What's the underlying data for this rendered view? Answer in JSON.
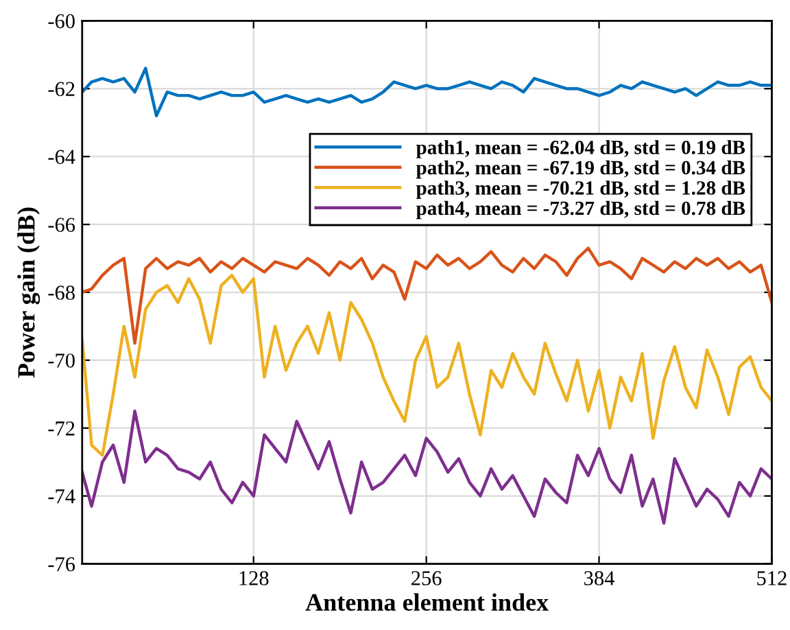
{
  "chart_data": {
    "type": "line",
    "xlabel": "Antenna element index",
    "ylabel": "Power gain (dB)",
    "x": [
      1,
      8,
      16,
      24,
      32,
      40,
      48,
      56,
      64,
      72,
      80,
      88,
      96,
      104,
      112,
      120,
      128,
      136,
      144,
      152,
      160,
      168,
      176,
      184,
      192,
      200,
      208,
      216,
      224,
      232,
      240,
      248,
      256,
      264,
      272,
      280,
      288,
      296,
      304,
      312,
      320,
      328,
      336,
      344,
      352,
      360,
      368,
      376,
      384,
      392,
      400,
      408,
      416,
      424,
      432,
      440,
      448,
      456,
      464,
      472,
      480,
      488,
      496,
      504,
      512
    ],
    "series": [
      {
        "name": "path1, mean = -62.04 dB, std = 0.19 dB",
        "color": "#0072bd",
        "values": [
          -62.1,
          -61.8,
          -61.7,
          -61.8,
          -61.7,
          -62.1,
          -61.4,
          -62.8,
          -62.1,
          -62.2,
          -62.2,
          -62.3,
          -62.2,
          -62.1,
          -62.2,
          -62.2,
          -62.1,
          -62.4,
          -62.3,
          -62.2,
          -62.3,
          -62.4,
          -62.3,
          -62.4,
          -62.3,
          -62.2,
          -62.4,
          -62.3,
          -62.1,
          -61.8,
          -61.9,
          -62.0,
          -61.9,
          -62.0,
          -62.0,
          -61.9,
          -61.8,
          -61.9,
          -62.0,
          -61.8,
          -61.9,
          -62.1,
          -61.7,
          -61.8,
          -61.9,
          -62.0,
          -62.0,
          -62.1,
          -62.2,
          -62.1,
          -61.9,
          -62.0,
          -61.8,
          -61.9,
          -62.0,
          -62.1,
          -62.0,
          -62.2,
          -62.0,
          -61.8,
          -61.9,
          -61.9,
          -61.8,
          -61.9,
          -61.9
        ]
      },
      {
        "name": "path2, mean = -67.19 dB, std = 0.34 dB",
        "color": "#d95319",
        "values": [
          -68.0,
          -67.9,
          -67.5,
          -67.2,
          -67.0,
          -69.5,
          -67.3,
          -67.0,
          -67.3,
          -67.1,
          -67.2,
          -67.0,
          -67.4,
          -67.1,
          -67.3,
          -67.0,
          -67.2,
          -67.4,
          -67.1,
          -67.2,
          -67.3,
          -67.0,
          -67.2,
          -67.5,
          -67.1,
          -67.3,
          -67.0,
          -67.6,
          -67.2,
          -67.4,
          -68.2,
          -67.1,
          -67.3,
          -66.9,
          -67.2,
          -67.0,
          -67.3,
          -67.1,
          -66.8,
          -67.2,
          -67.4,
          -67.0,
          -67.3,
          -66.9,
          -67.1,
          -67.5,
          -67.0,
          -66.7,
          -67.2,
          -67.1,
          -67.3,
          -67.6,
          -67.0,
          -67.2,
          -67.4,
          -67.1,
          -67.3,
          -67.0,
          -67.2,
          -67.0,
          -67.3,
          -67.1,
          -67.4,
          -67.2,
          -68.3
        ]
      },
      {
        "name": "path3, mean = -70.21 dB, std = 1.28 dB",
        "color": "#edb120",
        "values": [
          -69.4,
          -72.5,
          -72.8,
          -71.0,
          -69.0,
          -70.5,
          -68.5,
          -68.0,
          -67.8,
          -68.3,
          -67.6,
          -68.2,
          -69.5,
          -67.8,
          -67.5,
          -68.0,
          -67.6,
          -70.5,
          -69.0,
          -70.3,
          -69.5,
          -69.0,
          -69.8,
          -68.6,
          -70.0,
          -68.3,
          -68.8,
          -69.5,
          -70.5,
          -71.2,
          -71.8,
          -70.0,
          -69.3,
          -70.8,
          -70.5,
          -69.5,
          -71.0,
          -72.2,
          -70.3,
          -70.8,
          -69.8,
          -70.5,
          -71.0,
          -69.5,
          -70.4,
          -71.2,
          -70.0,
          -71.5,
          -70.3,
          -72.0,
          -70.5,
          -71.2,
          -69.8,
          -72.3,
          -70.6,
          -69.6,
          -70.8,
          -71.4,
          -69.7,
          -70.5,
          -71.6,
          -70.2,
          -69.9,
          -70.8,
          -71.2
        ]
      },
      {
        "name": "path4, mean = -73.27 dB, std = 0.78 dB",
        "color": "#7e2f8e",
        "values": [
          -73.3,
          -74.3,
          -73.0,
          -72.5,
          -73.6,
          -71.5,
          -73.0,
          -72.6,
          -72.8,
          -73.2,
          -73.3,
          -73.5,
          -73.0,
          -73.8,
          -74.2,
          -73.6,
          -74.0,
          -72.2,
          -72.6,
          -73.0,
          -71.8,
          -72.5,
          -73.2,
          -72.4,
          -73.5,
          -74.5,
          -73.0,
          -73.8,
          -73.6,
          -73.2,
          -72.8,
          -73.4,
          -72.3,
          -72.7,
          -73.3,
          -72.9,
          -73.6,
          -74.0,
          -73.2,
          -73.8,
          -73.4,
          -74.0,
          -74.6,
          -73.5,
          -73.9,
          -74.2,
          -72.8,
          -73.4,
          -72.6,
          -73.5,
          -73.9,
          -72.8,
          -74.3,
          -73.5,
          -74.8,
          -72.9,
          -73.6,
          -74.3,
          -73.8,
          -74.1,
          -74.6,
          -73.6,
          -74.0,
          -73.2,
          -73.5
        ]
      }
    ],
    "xlim": [
      1,
      512
    ],
    "xticks": [
      128,
      256,
      384,
      512
    ],
    "ylim": [
      -76,
      -60
    ],
    "yticks": [
      -76,
      -74,
      -72,
      -70,
      -68,
      -66,
      -64,
      -62,
      -60
    ],
    "grid": true,
    "legend": "top right",
    "marker": "none",
    "line_style": "solid"
  }
}
